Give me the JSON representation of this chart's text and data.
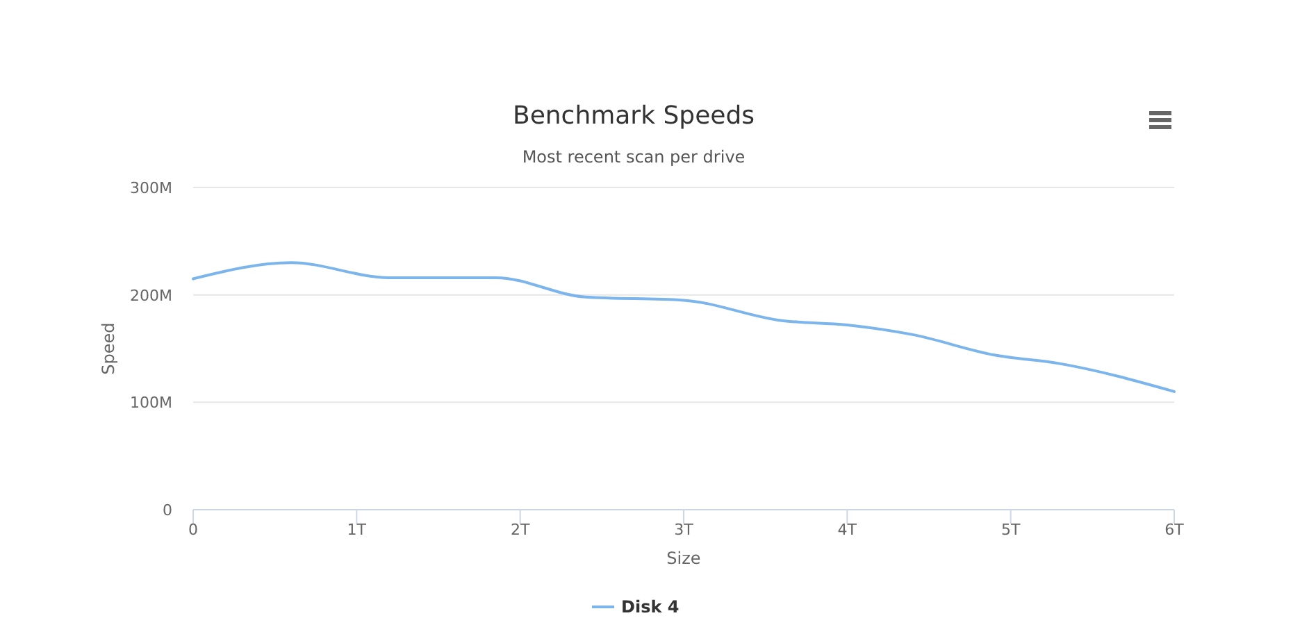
{
  "chart_data": {
    "type": "line",
    "title": "Benchmark Speeds",
    "subtitle": "Most recent scan per drive",
    "xlabel": "Size",
    "ylabel": "Speed",
    "xlim": [
      0,
      6
    ],
    "xticks": [
      0,
      {
        "value": 1,
        "label": "1T"
      },
      {
        "value": 2,
        "label": "2T"
      },
      {
        "value": 3,
        "label": "3T"
      },
      {
        "value": 4,
        "label": "4T"
      },
      {
        "value": 5,
        "label": "5T"
      },
      {
        "value": 6,
        "label": "6T"
      }
    ],
    "ylim": [
      0,
      300
    ],
    "yticks": [
      0,
      {
        "value": 100,
        "label": "100M"
      },
      {
        "value": 200,
        "label": "200M"
      },
      {
        "value": 300,
        "label": "300M"
      }
    ],
    "grid": "y",
    "legend": "bottom",
    "marker": "none",
    "line_style": "solid",
    "series": [
      {
        "name": "Disk 4",
        "color": "#7cb5ec",
        "x": [
          0,
          0.6,
          1.2,
          1.85,
          2.4,
          3.0,
          3.6,
          4.0,
          4.4,
          4.9,
          5.3,
          6
        ],
        "values": [
          215,
          230,
          216,
          216,
          198,
          195,
          176,
          172,
          163,
          144,
          136,
          110
        ]
      }
    ]
  }
}
